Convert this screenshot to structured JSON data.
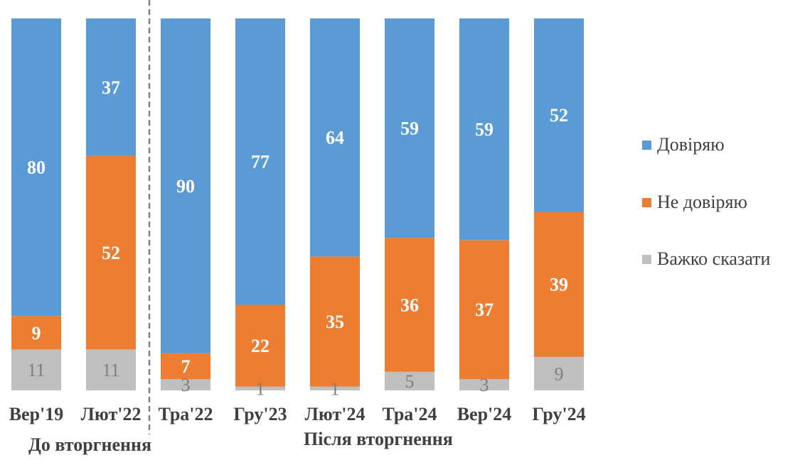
{
  "chart_data": {
    "type": "bar",
    "stacked": true,
    "categories": [
      "Вер'19",
      "Лют'22",
      "Тра'22",
      "Гру'23",
      "Лют'24",
      "Тра'24",
      "Вер'24",
      "Гру'24"
    ],
    "series": [
      {
        "name": "Довіряю",
        "color": "#5B9BD5",
        "values": [
          80,
          37,
          90,
          77,
          64,
          59,
          59,
          52
        ]
      },
      {
        "name": "Не довіряю",
        "color": "#ED7D31",
        "values": [
          9,
          52,
          7,
          22,
          35,
          36,
          37,
          39
        ]
      },
      {
        "name": "Важко сказати",
        "color": "#BFBFBF",
        "values": [
          11,
          11,
          3,
          1,
          1,
          5,
          3,
          9
        ]
      }
    ],
    "groups": [
      {
        "label": "До вторгнення"
      },
      {
        "label": "Після вторгнення"
      }
    ],
    "divider": "dashed line between Лют'22 and Тра'22",
    "legend_position": "right",
    "grid": false
  }
}
